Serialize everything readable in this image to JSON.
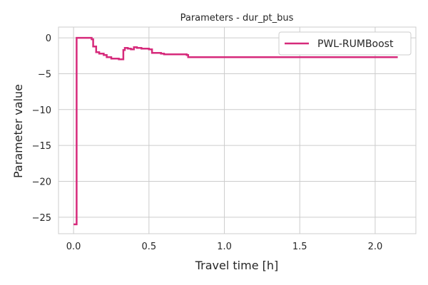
{
  "chart_data": {
    "type": "line",
    "title": "Parameters - dur_pt_bus",
    "xlabel": "Travel time [h]",
    "ylabel": "Parameter value",
    "xlim": [
      -0.1,
      2.27
    ],
    "ylim": [
      -27.3,
      1.5
    ],
    "x_ticks": [
      0.0,
      0.5,
      1.0,
      1.5,
      2.0
    ],
    "x_tick_labels": [
      "0.0",
      "0.5",
      "1.0",
      "1.5",
      "2.0"
    ],
    "y_ticks": [
      0,
      -5,
      -10,
      -15,
      -20,
      -25
    ],
    "y_tick_labels": [
      "0",
      "−5",
      "−10",
      "−15",
      "−20",
      "−25"
    ],
    "grid": true,
    "legend": {
      "position": "top-right",
      "entries": [
        "PWL-RUMBoost"
      ]
    },
    "series": [
      {
        "name": "PWL-RUMBoost",
        "color": "#d62a7b",
        "line_style": "step",
        "x": [
          0.0,
          0.02,
          0.03,
          0.12,
          0.13,
          0.15,
          0.17,
          0.2,
          0.22,
          0.25,
          0.28,
          0.3,
          0.33,
          0.34,
          0.36,
          0.38,
          0.4,
          0.42,
          0.45,
          0.47,
          0.5,
          0.52,
          0.58,
          0.6,
          0.75,
          0.76,
          2.15
        ],
        "y": [
          -26.0,
          0.0,
          0.0,
          -0.2,
          -1.2,
          -2.0,
          -2.2,
          -2.4,
          -2.7,
          -2.9,
          -2.9,
          -3.0,
          -1.7,
          -1.4,
          -1.5,
          -1.6,
          -1.3,
          -1.4,
          -1.5,
          -1.5,
          -1.6,
          -2.1,
          -2.2,
          -2.3,
          -2.4,
          -2.7,
          -2.7
        ]
      }
    ]
  }
}
